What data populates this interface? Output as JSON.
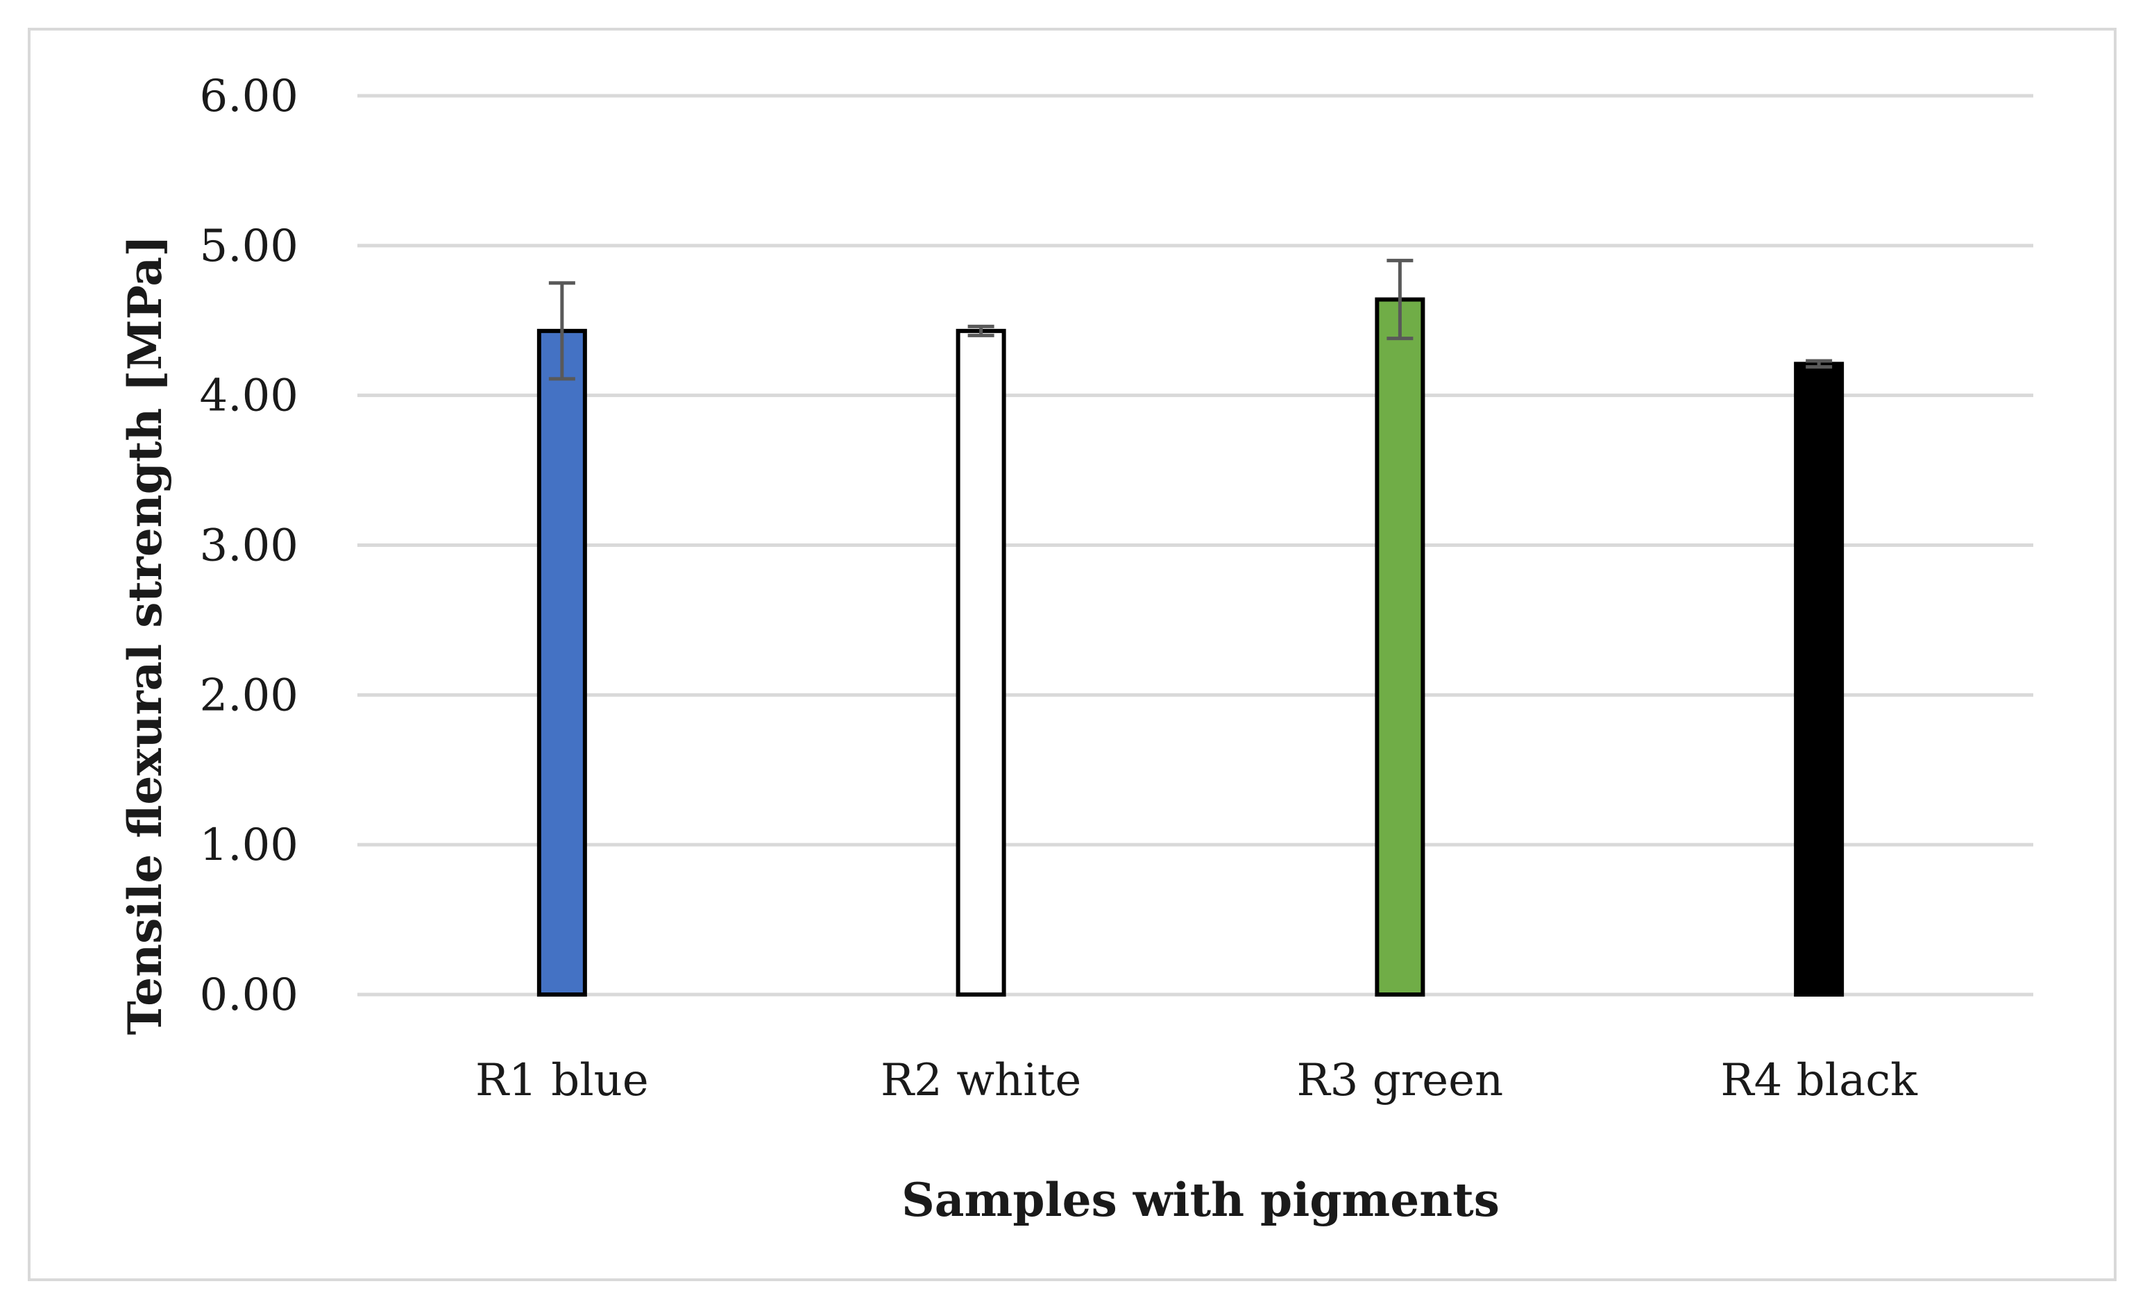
{
  "chart_data": {
    "type": "bar",
    "title": "",
    "xlabel": "Samples with pigments",
    "ylabel": "Tensile flexural strength [MPa]",
    "ylim": [
      0,
      6
    ],
    "yticks": [
      "0.00",
      "1.00",
      "2.00",
      "3.00",
      "4.00",
      "5.00",
      "6.00"
    ],
    "grid": true,
    "categories": [
      "R1 blue",
      "R2 white",
      "R3 green",
      "R4 black"
    ],
    "values": [
      4.43,
      4.43,
      4.64,
      4.21
    ],
    "errors": [
      0.32,
      0.03,
      0.26,
      0.02
    ],
    "bar_colors": [
      "#4472c4",
      "#ffffff",
      "#70ad47",
      "#000000"
    ],
    "bar_outline": "#000000",
    "gridline_color": "#d9d9d9",
    "errorbar_color": "#595959"
  }
}
